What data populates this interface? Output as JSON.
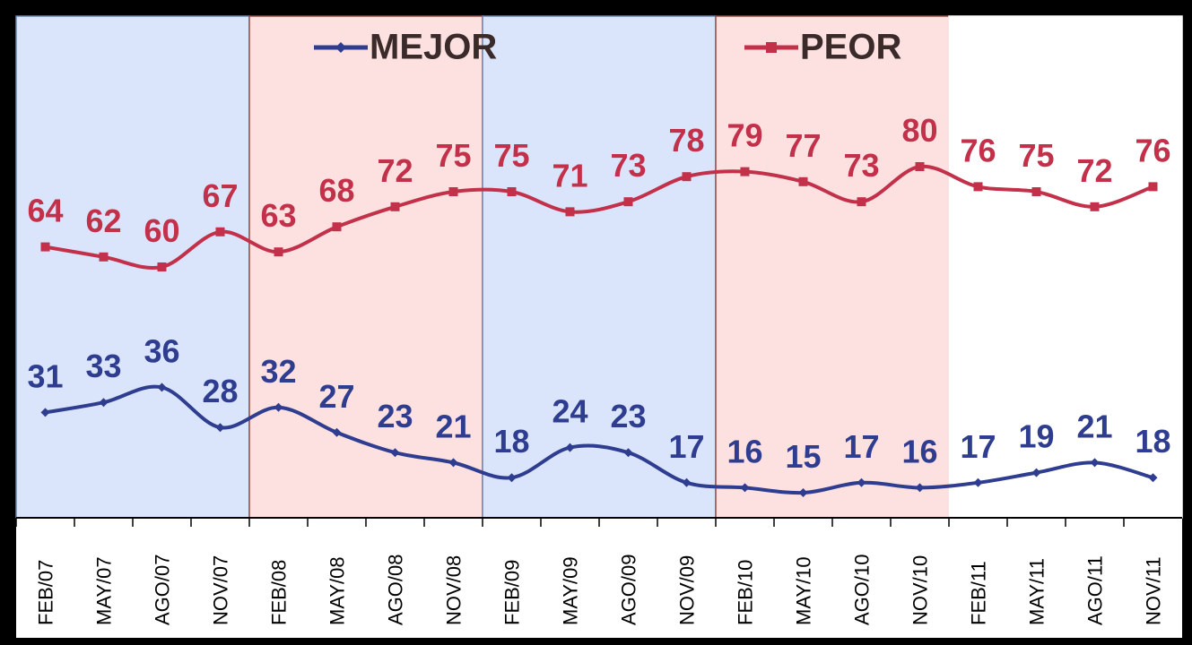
{
  "chart_data": {
    "type": "line",
    "categories": [
      "FEB/07",
      "MAY/07",
      "AGO/07",
      "NOV/07",
      "FEB/08",
      "MAY/08",
      "AGO/08",
      "NOV/08",
      "FEB/09",
      "MAY/09",
      "AGO/09",
      "NOV/09",
      "FEB/10",
      "MAY/10",
      "AGO/10",
      "NOV/10",
      "FEB/11",
      "MAY/11",
      "AGO/11",
      "NOV/11"
    ],
    "series": [
      {
        "name": "MEJOR",
        "color": "#2e3d8f",
        "values": [
          31,
          33,
          36,
          28,
          32,
          27,
          23,
          21,
          18,
          24,
          23,
          17,
          16,
          15,
          17,
          16,
          17,
          19,
          21,
          18
        ]
      },
      {
        "name": "PEOR",
        "color": "#c2304a",
        "values": [
          64,
          62,
          60,
          67,
          63,
          68,
          72,
          75,
          75,
          71,
          73,
          78,
          79,
          77,
          73,
          80,
          76,
          75,
          72,
          76
        ]
      }
    ],
    "ylim": [
      10,
      110
    ]
  }
}
